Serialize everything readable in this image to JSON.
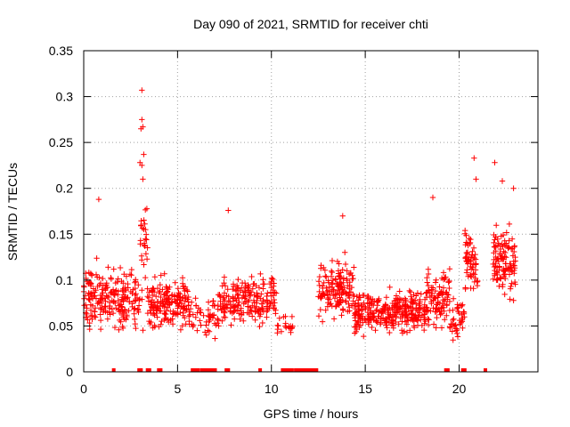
{
  "chart_data": {
    "type": "scatter",
    "title": "Day 090 of 2021, SRMTID for receiver chti",
    "xlabel": "GPS time / hours",
    "ylabel": "SRMTID / TECUs",
    "xlim": [
      0,
      24.2
    ],
    "ylim": [
      0,
      0.35
    ],
    "xticks": [
      0,
      5,
      10,
      15,
      20
    ],
    "yticks": [
      0,
      0.05,
      0.1,
      0.15,
      0.2,
      0.25,
      0.3,
      0.35
    ],
    "xtick_labels": [
      "0",
      "5",
      "10",
      "15",
      "20"
    ],
    "ytick_labels": [
      "0",
      "0.05",
      "0.1",
      "0.15",
      "0.2",
      "0.25",
      "0.3",
      "0.35"
    ],
    "grid": true,
    "marker": "+",
    "marker_color": "#ff0000",
    "peak_points": [
      {
        "x": 3.1,
        "y": 0.307
      },
      {
        "x": 3.1,
        "y": 0.275
      },
      {
        "x": 3.15,
        "y": 0.267
      },
      {
        "x": 3.05,
        "y": 0.265
      },
      {
        "x": 3.2,
        "y": 0.237
      },
      {
        "x": 3.0,
        "y": 0.228
      },
      {
        "x": 3.1,
        "y": 0.225
      },
      {
        "x": 3.15,
        "y": 0.21
      },
      {
        "x": 20.8,
        "y": 0.233
      },
      {
        "x": 21.9,
        "y": 0.228
      },
      {
        "x": 22.3,
        "y": 0.208
      },
      {
        "x": 18.6,
        "y": 0.19
      },
      {
        "x": 0.8,
        "y": 0.188
      },
      {
        "x": 7.7,
        "y": 0.176
      },
      {
        "x": 22.9,
        "y": 0.2
      },
      {
        "x": 13.8,
        "y": 0.17
      },
      {
        "x": 20.9,
        "y": 0.21
      }
    ],
    "point_clusters": [
      {
        "x_start": 0.0,
        "x_end": 3.0,
        "y_mean": 0.08,
        "y_spread": 0.03,
        "count": 220
      },
      {
        "x_start": 3.0,
        "x_end": 3.4,
        "y_mean": 0.13,
        "y_spread": 0.06,
        "count": 30
      },
      {
        "x_start": 3.4,
        "x_end": 5.6,
        "y_mean": 0.075,
        "y_spread": 0.025,
        "count": 180
      },
      {
        "x_start": 5.6,
        "x_end": 7.2,
        "y_mean": 0.06,
        "y_spread": 0.02,
        "count": 60
      },
      {
        "x_start": 7.2,
        "x_end": 10.3,
        "y_mean": 0.08,
        "y_spread": 0.025,
        "count": 200
      },
      {
        "x_start": 10.3,
        "x_end": 11.2,
        "y_mean": 0.05,
        "y_spread": 0.015,
        "count": 20
      },
      {
        "x_start": 12.5,
        "x_end": 14.4,
        "y_mean": 0.09,
        "y_spread": 0.03,
        "count": 150
      },
      {
        "x_start": 14.4,
        "x_end": 18.2,
        "y_mean": 0.065,
        "y_spread": 0.02,
        "count": 320
      },
      {
        "x_start": 18.2,
        "x_end": 19.5,
        "y_mean": 0.08,
        "y_spread": 0.03,
        "count": 100
      },
      {
        "x_start": 19.5,
        "x_end": 20.3,
        "y_mean": 0.06,
        "y_spread": 0.02,
        "count": 40
      },
      {
        "x_start": 20.3,
        "x_end": 21.0,
        "y_mean": 0.12,
        "y_spread": 0.04,
        "count": 60
      },
      {
        "x_start": 21.8,
        "x_end": 23.0,
        "y_mean": 0.12,
        "y_spread": 0.035,
        "count": 120
      }
    ],
    "zero_markers": [
      1.6,
      2.95,
      3.05,
      3.4,
      3.5,
      4.0,
      4.1,
      5.8,
      5.9,
      6.0,
      6.1,
      6.3,
      6.4,
      6.5,
      6.6,
      6.7,
      6.8,
      6.9,
      7.0,
      7.6,
      7.7,
      9.4,
      10.6,
      10.7,
      10.8,
      10.9,
      11.0,
      11.1,
      11.3,
      11.4,
      11.5,
      11.6,
      11.7,
      11.8,
      11.9,
      12.0,
      12.1,
      12.2,
      12.3,
      12.4,
      19.3,
      19.4,
      20.2,
      20.3,
      21.4
    ]
  }
}
